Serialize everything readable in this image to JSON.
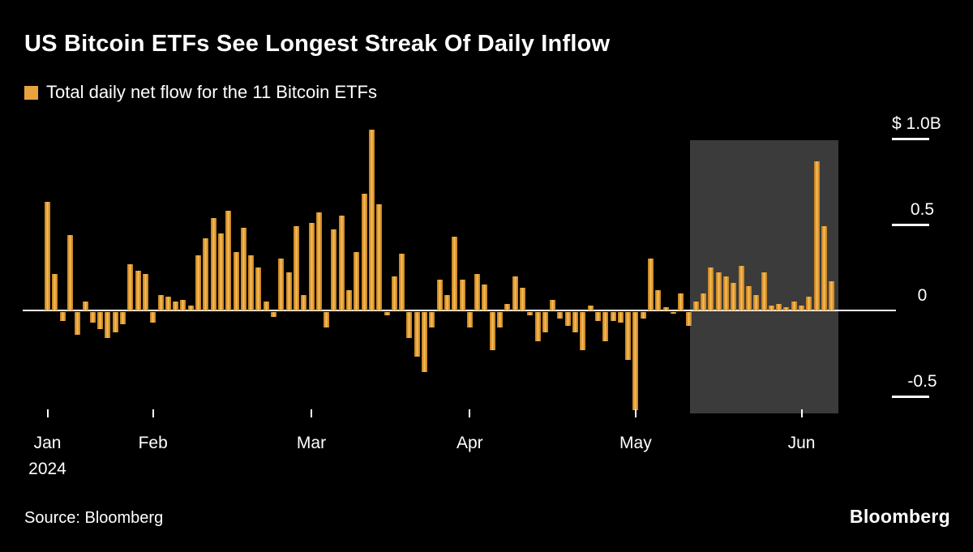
{
  "header": {
    "title": "US Bitcoin ETFs See Longest Streak Of Daily Inflow",
    "legend_label": "Total daily net flow for the 11 Bitcoin ETFs"
  },
  "footer": {
    "source": "Source: Bloomberg",
    "logo": "Bloomberg"
  },
  "colors": {
    "background": "#000000",
    "text": "#ffffff",
    "bar": "#E8A33D",
    "bar_light": "#F7C85E",
    "bar_dark": "#C07D1E",
    "highlight": "#3B3B3B",
    "axis": "#ffffff"
  },
  "chart_data": {
    "type": "bar",
    "title": "US Bitcoin ETFs See Longest Streak Of Daily Inflow",
    "series_name": "Total daily net flow for the 11 Bitcoin ETFs",
    "unit": "$B",
    "ylim": [
      -0.65,
      1.1
    ],
    "grid": false,
    "legend_position": "top-left",
    "y_axis": {
      "ticks": [
        {
          "label": "$ 1.0B",
          "value": 1.0
        },
        {
          "label": "0.5",
          "value": 0.5
        },
        {
          "label": "0",
          "value": 0
        },
        {
          "label": "-0.5",
          "value": -0.5
        }
      ]
    },
    "x_axis": {
      "months": [
        {
          "label": "Jan",
          "sublabel": "2024",
          "bar_index": 0
        },
        {
          "label": "Feb",
          "bar_index": 14
        },
        {
          "label": "Mar",
          "bar_index": 35
        },
        {
          "label": "Apr",
          "bar_index": 56
        },
        {
          "label": "May",
          "bar_index": 78
        },
        {
          "label": "Jun",
          "bar_index": 100
        }
      ]
    },
    "values": [
      0.63,
      0.21,
      -0.05,
      0.44,
      -0.13,
      0.05,
      -0.06,
      -0.1,
      -0.15,
      -0.12,
      -0.07,
      0.27,
      0.23,
      0.21,
      -0.06,
      0.09,
      0.08,
      0.05,
      0.06,
      0.03,
      0.32,
      0.42,
      0.54,
      0.45,
      0.58,
      0.34,
      0.48,
      0.32,
      0.25,
      0.05,
      -0.03,
      0.3,
      0.22,
      0.49,
      0.09,
      0.51,
      0.57,
      -0.09,
      0.47,
      0.55,
      0.12,
      0.34,
      0.68,
      1.05,
      0.62,
      -0.02,
      0.2,
      0.33,
      -0.15,
      -0.26,
      -0.35,
      -0.09,
      0.18,
      0.09,
      0.43,
      0.18,
      -0.09,
      0.21,
      0.15,
      -0.22,
      -0.09,
      0.04,
      0.2,
      0.13,
      -0.02,
      -0.17,
      -0.12,
      0.06,
      -0.04,
      -0.08,
      -0.12,
      -0.22,
      0.03,
      -0.05,
      -0.17,
      -0.05,
      -0.06,
      -0.28,
      -0.57,
      -0.04,
      0.3,
      0.12,
      0.02,
      -0.01,
      0.1,
      -0.08,
      0.05,
      0.1,
      0.25,
      0.22,
      0.2,
      0.16,
      0.26,
      0.14,
      0.09,
      0.22,
      0.03,
      0.04,
      0.02,
      0.05,
      0.03,
      0.08,
      0.87,
      0.49,
      0.17
    ],
    "highlight": {
      "start_index": 86,
      "end_index": 104
    }
  }
}
